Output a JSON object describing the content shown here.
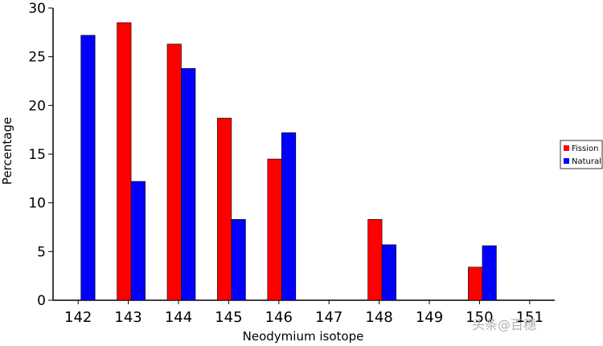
{
  "chart_data": {
    "type": "bar",
    "title": "",
    "xlabel": "Neodymium isotope",
    "ylabel": "Percentage",
    "ylim": [
      0,
      30
    ],
    "yticks": [
      "0",
      "5",
      "10",
      "15",
      "20",
      "25",
      "30"
    ],
    "categories": [
      "142",
      "143",
      "144",
      "145",
      "146",
      "147",
      "148",
      "149",
      "150",
      "151"
    ],
    "series": [
      {
        "name": "Fission",
        "color": "#ff0000",
        "values": [
          0,
          28.5,
          26.3,
          18.7,
          14.5,
          0,
          8.3,
          0,
          3.4,
          0
        ]
      },
      {
        "name": "Natural",
        "color": "#0000ff",
        "values": [
          27.2,
          12.2,
          23.8,
          8.3,
          17.2,
          0,
          5.7,
          0,
          5.6,
          0
        ]
      }
    ],
    "grid": false,
    "legend": "right"
  },
  "watermark": "头条@百穗"
}
